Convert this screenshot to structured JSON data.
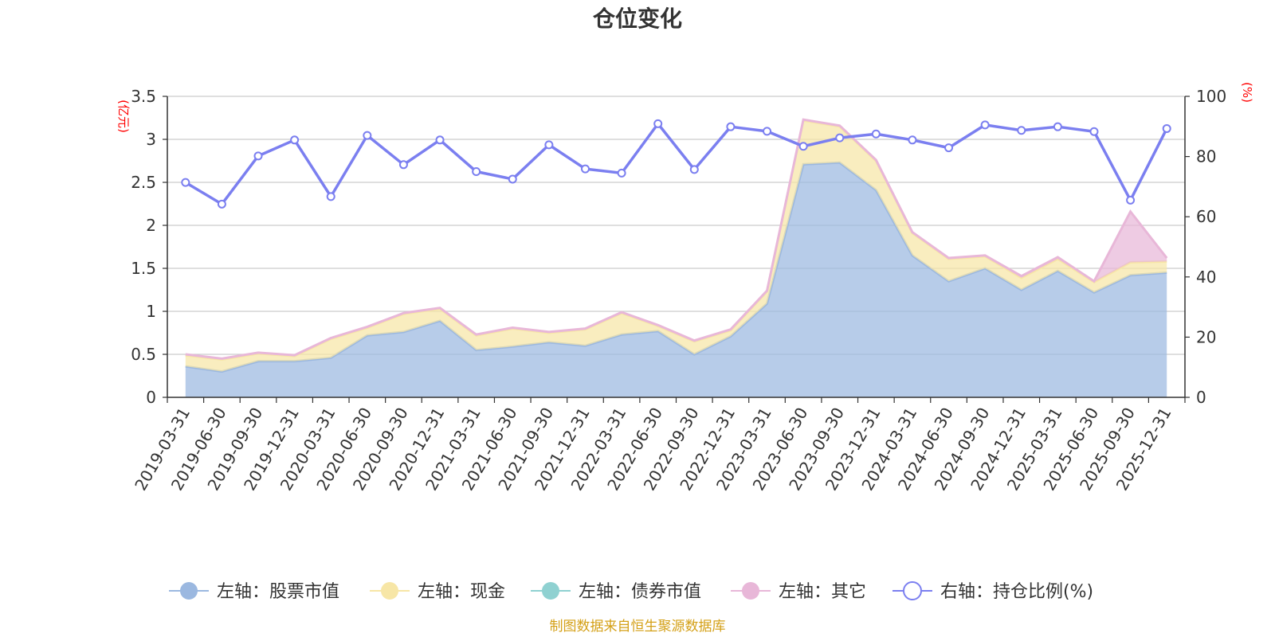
{
  "chart_data": {
    "type": "area",
    "title": "仓位变化",
    "left_axis_unit": "(亿元)",
    "right_axis_unit": "(%)",
    "categories": [
      "2019-03-31",
      "2019-06-30",
      "2019-09-30",
      "2019-12-31",
      "2020-03-31",
      "2020-06-30",
      "2020-09-30",
      "2020-12-31",
      "2021-03-31",
      "2021-06-30",
      "2021-09-30",
      "2021-12-31",
      "2022-03-31",
      "2022-06-30",
      "2022-09-30",
      "2022-12-31",
      "2023-03-31",
      "2023-06-30",
      "2023-09-30",
      "2023-12-31",
      "2024-03-31",
      "2024-06-30",
      "2024-09-30",
      "2024-12-31",
      "2025-03-31",
      "2025-06-30",
      "2025-09-30",
      "2025-12-31"
    ],
    "left_ylim": [
      0,
      3.5
    ],
    "left_ticks": [
      "0",
      "0.5",
      "1",
      "1.5",
      "2",
      "2.5",
      "3",
      "3.5"
    ],
    "right_ylim": [
      0,
      100
    ],
    "right_ticks": [
      "0",
      "20",
      "40",
      "60",
      "80",
      "100"
    ],
    "series": [
      {
        "name": "左轴：股票市值",
        "axis": "left",
        "kind": "stacked-area",
        "color": "#9bb8e0",
        "values": [
          0.36,
          0.3,
          0.42,
          0.42,
          0.46,
          0.72,
          0.76,
          0.89,
          0.55,
          0.59,
          0.64,
          0.6,
          0.73,
          0.77,
          0.5,
          0.71,
          1.09,
          2.71,
          2.73,
          2.41,
          1.65,
          1.35,
          1.5,
          1.25,
          1.47,
          1.22,
          1.42,
          1.45
        ]
      },
      {
        "name": "左轴：现金",
        "axis": "left",
        "kind": "stacked-area",
        "color": "#f7e6a6",
        "values": [
          0.13,
          0.14,
          0.09,
          0.06,
          0.22,
          0.09,
          0.21,
          0.14,
          0.17,
          0.21,
          0.11,
          0.19,
          0.25,
          0.06,
          0.15,
          0.07,
          0.14,
          0.51,
          0.42,
          0.34,
          0.26,
          0.26,
          0.14,
          0.14,
          0.14,
          0.12,
          0.15,
          0.13
        ]
      },
      {
        "name": "左轴：债券市值",
        "axis": "left",
        "kind": "stacked-area",
        "color": "#8fd1d1",
        "values": [
          0,
          0,
          0,
          0,
          0,
          0,
          0,
          0,
          0,
          0,
          0,
          0,
          0,
          0,
          0,
          0,
          0,
          0,
          0,
          0,
          0,
          0,
          0,
          0,
          0,
          0,
          0,
          0
        ]
      },
      {
        "name": "左轴：其它",
        "axis": "left",
        "kind": "stacked-area",
        "color": "#e8b7d8",
        "values": [
          0.01,
          0.01,
          0.01,
          0.01,
          0.01,
          0.01,
          0.01,
          0.01,
          0.01,
          0.01,
          0.01,
          0.01,
          0.01,
          0.01,
          0.01,
          0.01,
          0.01,
          0.01,
          0.01,
          0.01,
          0.01,
          0.01,
          0.01,
          0.02,
          0.02,
          0.01,
          0.59,
          0.04
        ]
      },
      {
        "name": "右轴：持仓比例(%)",
        "axis": "right",
        "kind": "line",
        "color": "#7b7ff0",
        "values": [
          71.4,
          64.2,
          80.2,
          85.5,
          66.7,
          87.0,
          77.3,
          85.5,
          75.0,
          72.5,
          83.9,
          75.9,
          74.5,
          90.9,
          75.7,
          89.9,
          88.4,
          83.4,
          86.2,
          87.5,
          85.5,
          82.9,
          90.5,
          88.7,
          89.9,
          88.3,
          65.5,
          89.3
        ]
      }
    ],
    "legend": [
      "左轴：股票市值",
      "左轴：现金",
      "左轴：债券市值",
      "左轴：其它",
      "右轴：持仓比例(%)"
    ],
    "legend_position": "bottom",
    "grid": true
  },
  "footer": {
    "source": "制图数据来自恒生聚源数据库"
  }
}
